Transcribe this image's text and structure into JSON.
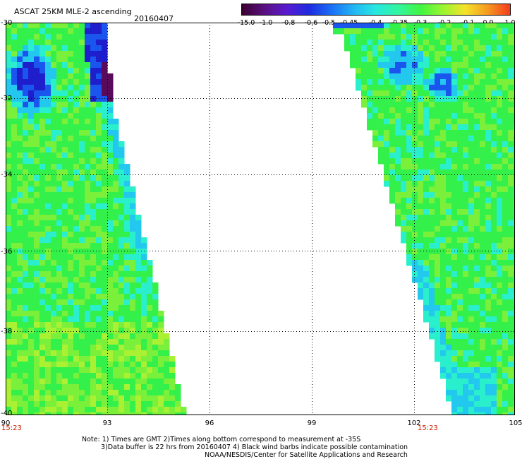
{
  "header": {
    "title": "ASCAT 25KM MLE-2 ascending",
    "date": "20160407"
  },
  "colorbar": {
    "labels": [
      "-15.0",
      "-1.0",
      "-0.8",
      "-0.6",
      "-0.5",
      "-0.45",
      "-0.4",
      "-0.35",
      "-0.3",
      "-0.2",
      "-0.1",
      "0.0",
      "1.0"
    ],
    "stops": [
      "#3a0030",
      "#5a1080",
      "#5a1ad0",
      "#1e2ae0",
      "#1a6ef5",
      "#23b5f5",
      "#26e8e0",
      "#33f5a0",
      "#40f540",
      "#9af530",
      "#f5e22a",
      "#f59a20",
      "#f53a1e"
    ]
  },
  "map": {
    "lat_labels": [
      "-30",
      "-32",
      "-34",
      "-36",
      "-38",
      "-40"
    ],
    "lon_labels": [
      "90",
      "93",
      "96",
      "99",
      "102",
      "105"
    ],
    "swath_times": [
      "15:23",
      "15:23"
    ],
    "palette": {
      "dark_purple": "#5a0a5a",
      "deep_blue": "#1e1ecc",
      "blue": "#1a55ee",
      "cyan": "#22c8ee",
      "aqua": "#2aefcc",
      "green": "#33f04a",
      "light_green": "#7af03a",
      "yellow_green": "#aaf033"
    }
  },
  "notes": {
    "line1": "Note: 1) Times are GMT 2)Times along bottom correspond to measurement at -35S",
    "line2": "3)Data buffer is 22 hrs from 20160407 4) Black wind barbs indicate possible contamination",
    "line3": "NOAA/NESDIS/Center for Satellite Applications and Research"
  }
}
